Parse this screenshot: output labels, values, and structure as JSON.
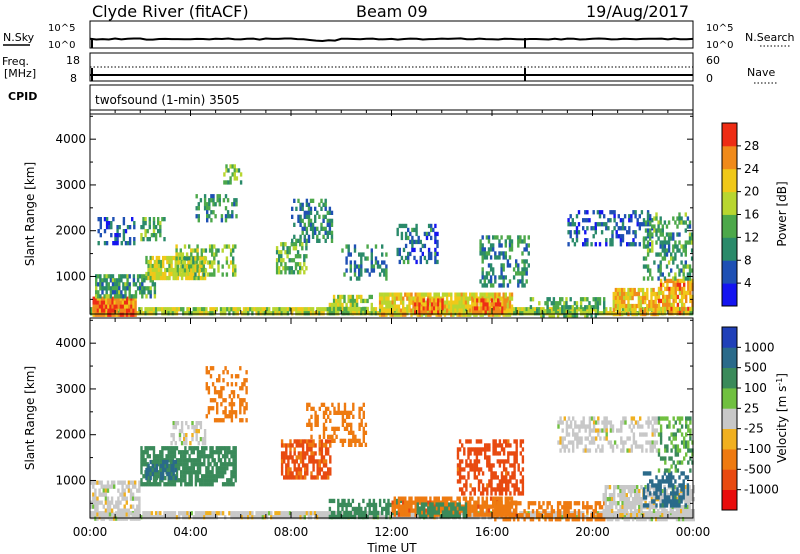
{
  "header": {
    "station": "Clyde River (fitACF)",
    "beam": "Beam 09",
    "date": "19/Aug/2017"
  },
  "noise_panel": {
    "left_label": "N.Sky",
    "right_label": "N.Search",
    "top_tick": "10^5",
    "bottom_tick": "10^0"
  },
  "freq_panel": {
    "left_label": "Freq.",
    "left_unit": "[MHz]",
    "left_ticks": [
      "18",
      "8"
    ],
    "right_label": "Nave",
    "right_ticks": [
      "60",
      "0"
    ]
  },
  "cpid": {
    "label": "CPID",
    "value": "twofsound (1-min) 3505"
  },
  "x_axis": {
    "ticks": [
      "00:00",
      "04:00",
      "08:00",
      "12:00",
      "16:00",
      "20:00",
      "00:00"
    ],
    "label": "Time UT"
  },
  "chart_data": [
    {
      "type": "heatmap",
      "panel": "power",
      "ylabel": "Slant Range [km]",
      "yticks": [
        1000,
        2000,
        3000,
        4000
      ],
      "ylim": [
        180,
        4550
      ],
      "xlim_hours": [
        0,
        24
      ],
      "colorbar": {
        "label": "Power [dB]",
        "ticks": [
          "4",
          "8",
          "12",
          "16",
          "20",
          "24",
          "28"
        ],
        "colors": [
          "#1414f0",
          "#1e50b4",
          "#2a8a6a",
          "#4ca84a",
          "#b8d630",
          "#f0c818",
          "#f08a1a",
          "#ee2c14"
        ],
        "vmin": 0,
        "vmax": 32
      },
      "regions": [
        {
          "t0": 0.0,
          "t1": 24.0,
          "r0": 180,
          "r1": 330,
          "v": 18,
          "d": 0.9
        },
        {
          "t0": 0.1,
          "t1": 1.8,
          "r0": 200,
          "r1": 560,
          "v": 27,
          "d": 0.95
        },
        {
          "t0": 0.2,
          "t1": 2.6,
          "r0": 560,
          "r1": 1050,
          "v": 12,
          "d": 0.75
        },
        {
          "t0": 2.2,
          "t1": 4.6,
          "r0": 950,
          "r1": 1450,
          "v": 19,
          "d": 0.8
        },
        {
          "t0": 3.4,
          "t1": 5.8,
          "r0": 1050,
          "r1": 1700,
          "v": 16,
          "d": 0.55
        },
        {
          "t0": 2.0,
          "t1": 3.0,
          "r0": 1850,
          "r1": 2300,
          "v": 13,
          "d": 0.5
        },
        {
          "t0": 4.2,
          "t1": 5.8,
          "r0": 2200,
          "r1": 2800,
          "v": 11,
          "d": 0.45
        },
        {
          "t0": 5.3,
          "t1": 6.0,
          "r0": 3050,
          "r1": 3450,
          "v": 15,
          "d": 0.5
        },
        {
          "t0": 0.3,
          "t1": 1.8,
          "r0": 1700,
          "r1": 2300,
          "v": 7,
          "d": 0.4
        },
        {
          "t0": 7.4,
          "t1": 8.6,
          "r0": 1100,
          "r1": 1750,
          "v": 15,
          "d": 0.6
        },
        {
          "t0": 8.0,
          "t1": 9.6,
          "r0": 1800,
          "r1": 2700,
          "v": 10,
          "d": 0.4
        },
        {
          "t0": 9.5,
          "t1": 11.2,
          "r0": 200,
          "r1": 600,
          "v": 17,
          "d": 0.55
        },
        {
          "t0": 10.0,
          "t1": 11.8,
          "r0": 1000,
          "r1": 1700,
          "v": 9,
          "d": 0.35
        },
        {
          "t0": 11.5,
          "t1": 16.8,
          "r0": 200,
          "r1": 650,
          "v": 21,
          "d": 0.85
        },
        {
          "t0": 12.9,
          "t1": 14.0,
          "r0": 250,
          "r1": 520,
          "v": 27,
          "d": 0.9
        },
        {
          "t0": 15.2,
          "t1": 16.6,
          "r0": 250,
          "r1": 520,
          "v": 26,
          "d": 0.85
        },
        {
          "t0": 12.2,
          "t1": 13.8,
          "r0": 1300,
          "r1": 2150,
          "v": 8,
          "d": 0.4
        },
        {
          "t0": 15.5,
          "t1": 17.5,
          "r0": 800,
          "r1": 1900,
          "v": 10,
          "d": 0.45
        },
        {
          "t0": 17.5,
          "t1": 20.5,
          "r0": 200,
          "r1": 550,
          "v": 14,
          "d": 0.55
        },
        {
          "t0": 20.8,
          "t1": 22.6,
          "r0": 220,
          "r1": 750,
          "v": 23,
          "d": 0.75
        },
        {
          "t0": 19.0,
          "t1": 22.4,
          "r0": 1700,
          "r1": 2450,
          "v": 7,
          "d": 0.4
        },
        {
          "t0": 22.6,
          "t1": 24.0,
          "r0": 200,
          "r1": 950,
          "v": 24,
          "d": 0.8
        },
        {
          "t0": 22.0,
          "t1": 24.0,
          "r0": 1000,
          "r1": 2400,
          "v": 12,
          "d": 0.4
        }
      ]
    },
    {
      "type": "heatmap",
      "panel": "velocity",
      "ylabel": "Slant Range [km]",
      "yticks": [
        1000,
        2000,
        3000,
        4000
      ],
      "ylim": [
        180,
        4550
      ],
      "xlim_hours": [
        0,
        24
      ],
      "colorbar": {
        "label": "Velocity [m s^-1]",
        "ticks": [
          "1000",
          "500",
          "100",
          "25",
          "-25",
          "-100",
          "-500",
          "-1000"
        ],
        "colors": [
          "#2040b8",
          "#2a6a8a",
          "#3a8a5a",
          "#70c040",
          "#c8c8c8",
          "#f0b020",
          "#ee7a10",
          "#e84a10",
          "#e80c0c"
        ],
        "levels": [
          1000,
          500,
          100,
          25,
          -25,
          -100,
          -500,
          -1000
        ]
      },
      "regions": [
        {
          "t0": 0.0,
          "t1": 24.0,
          "r0": 180,
          "r1": 330,
          "v": 0,
          "d": 0.9
        },
        {
          "t0": 0.0,
          "t1": 2.0,
          "r0": 200,
          "r1": 1000,
          "v": 0,
          "d": 0.6
        },
        {
          "t0": 2.0,
          "t1": 5.8,
          "r0": 950,
          "r1": 1750,
          "v": 150,
          "d": 0.75
        },
        {
          "t0": 2.2,
          "t1": 3.4,
          "r0": 1050,
          "r1": 1450,
          "v": 600,
          "d": 0.6
        },
        {
          "t0": 3.2,
          "t1": 4.6,
          "r0": 1800,
          "r1": 2300,
          "v": 0,
          "d": 0.5
        },
        {
          "t0": 4.6,
          "t1": 6.2,
          "r0": 2300,
          "r1": 3500,
          "v": -250,
          "d": 0.35
        },
        {
          "t0": 7.6,
          "t1": 9.6,
          "r0": 1100,
          "r1": 1900,
          "v": -600,
          "d": 0.7
        },
        {
          "t0": 8.6,
          "t1": 11.0,
          "r0": 1800,
          "r1": 2700,
          "v": -200,
          "d": 0.4
        },
        {
          "t0": 9.5,
          "t1": 12.5,
          "r0": 200,
          "r1": 600,
          "v": 200,
          "d": 0.55
        },
        {
          "t0": 12.0,
          "t1": 17.0,
          "r0": 220,
          "r1": 650,
          "v": -400,
          "d": 0.8
        },
        {
          "t0": 13.0,
          "t1": 15.0,
          "r0": 250,
          "r1": 520,
          "v": 300,
          "d": 0.6
        },
        {
          "t0": 14.6,
          "t1": 17.2,
          "r0": 700,
          "r1": 1900,
          "v": -700,
          "d": 0.5
        },
        {
          "t0": 16.0,
          "t1": 20.5,
          "r0": 200,
          "r1": 550,
          "v": -250,
          "d": 0.55
        },
        {
          "t0": 18.6,
          "t1": 22.6,
          "r0": 1700,
          "r1": 2400,
          "v": 0,
          "d": 0.45
        },
        {
          "t0": 20.4,
          "t1": 24.0,
          "r0": 200,
          "r1": 900,
          "v": 0,
          "d": 0.75
        },
        {
          "t0": 22.0,
          "t1": 23.8,
          "r0": 500,
          "r1": 1200,
          "v": 700,
          "d": 0.5
        },
        {
          "t0": 22.6,
          "t1": 24.0,
          "r0": 1200,
          "r1": 2400,
          "v": 100,
          "d": 0.35
        }
      ]
    }
  ]
}
